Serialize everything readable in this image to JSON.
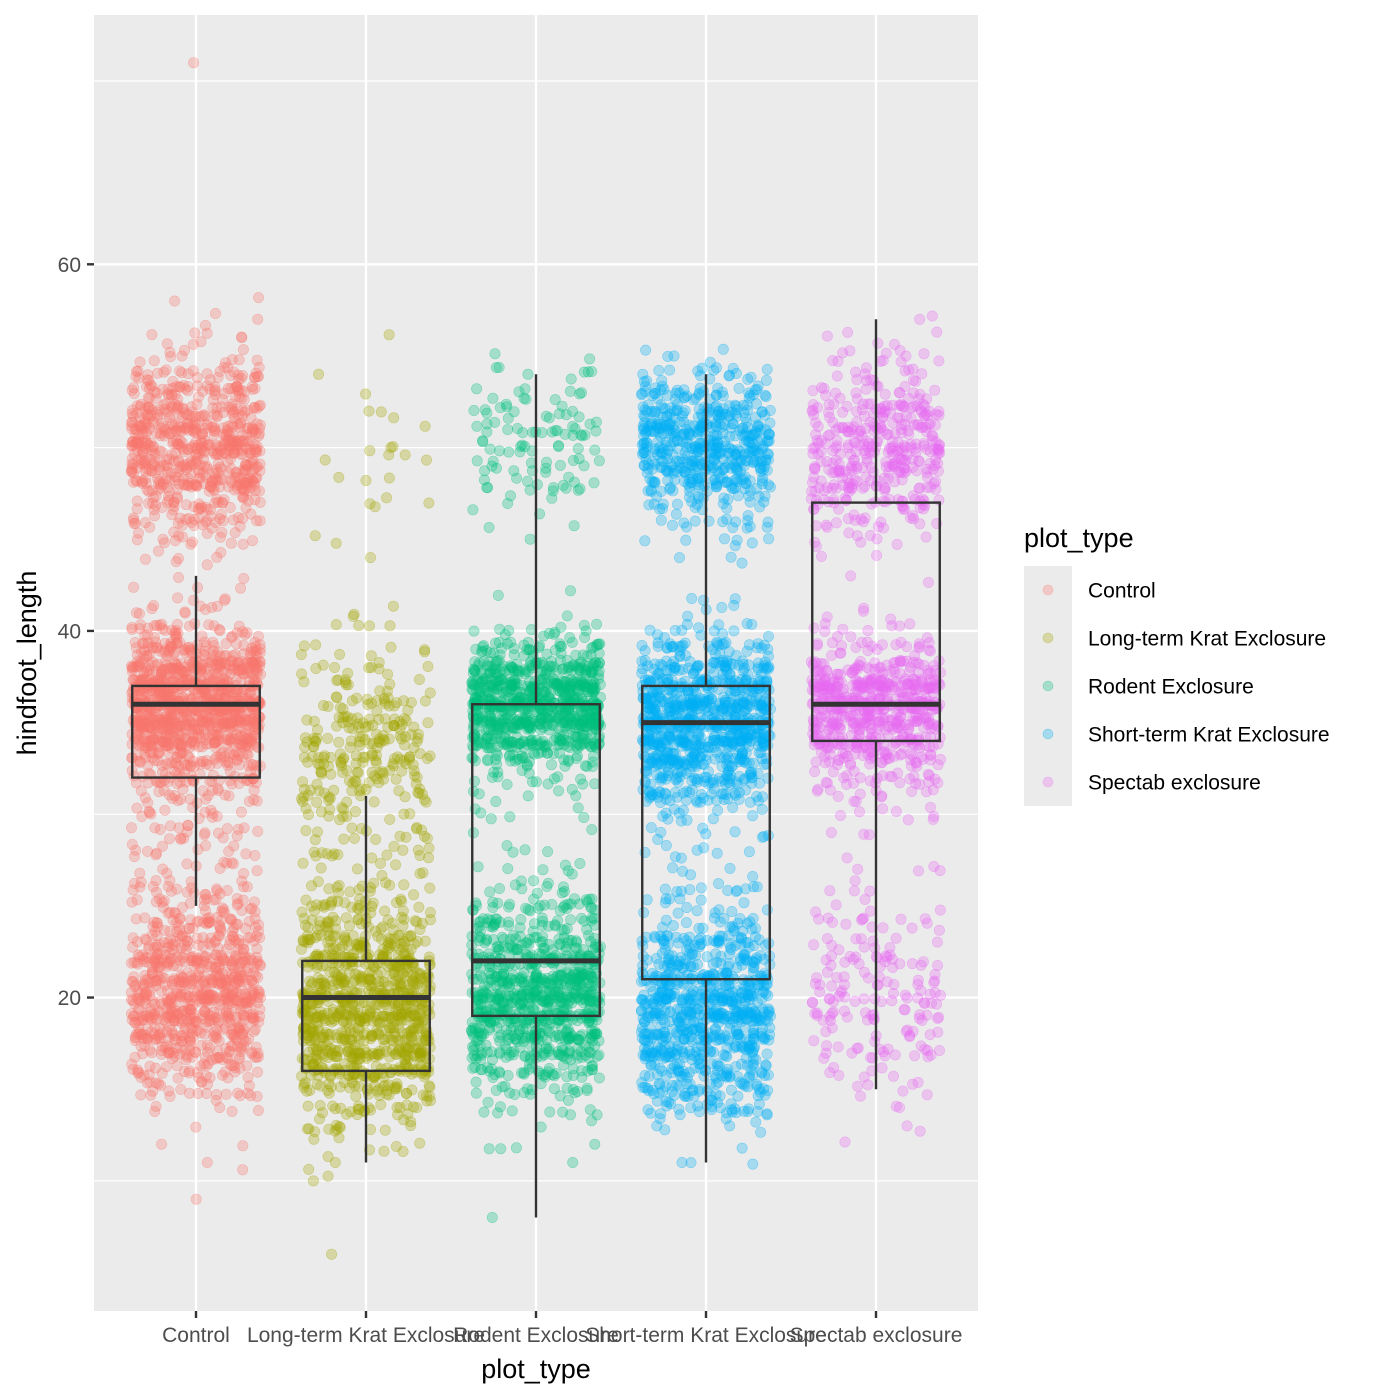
{
  "chart_data": {
    "type": "boxplot-jitter",
    "title": "",
    "xlabel": "plot_type",
    "ylabel": "hindfoot_length",
    "ylim": [
      2.9,
      73.6
    ],
    "yticks": [
      20,
      40,
      60
    ],
    "yminor": [
      10,
      30,
      50,
      70
    ],
    "grid": true,
    "legend": {
      "title": "plot_type",
      "position": "right",
      "entries": [
        "Control",
        "Long-term Krat Exclosure",
        "Rodent Exclosure",
        "Short-term Krat Exclosure",
        "Spectab exclosure"
      ]
    },
    "categories": [
      "Control",
      "Long-term Krat Exclosure",
      "Rodent Exclosure",
      "Short-term Krat Exclosure",
      "Spectab exclosure"
    ],
    "colors": [
      "#F8766D",
      "#A3A500",
      "#00BF7D",
      "#00B0F6",
      "#E76BF3"
    ],
    "point_alpha": 0.3,
    "boxplot": [
      {
        "category": "Control",
        "whisker_low": 25,
        "q1": 32,
        "median": 36,
        "q3": 37,
        "whisker_high": 43
      },
      {
        "category": "Long-term Krat Exclosure",
        "whisker_low": 11,
        "q1": 16,
        "median": 20,
        "q3": 22,
        "whisker_high": 31
      },
      {
        "category": "Rodent Exclosure",
        "whisker_low": 8,
        "q1": 19,
        "median": 22,
        "q3": 36,
        "whisker_high": 54
      },
      {
        "category": "Short-term Krat Exclosure",
        "whisker_low": 11,
        "q1": 21,
        "median": 35,
        "q3": 37,
        "whisker_high": 54
      },
      {
        "category": "Spectab exclosure",
        "whisker_low": 15,
        "q1": 34,
        "median": 36,
        "q3": 47,
        "whisker_high": 57
      }
    ],
    "jitter_bands": [
      {
        "category": "Control",
        "bands": [
          {
            "center": 50,
            "spread": 2.6,
            "n": 700
          },
          {
            "center": 36,
            "spread": 2.0,
            "n": 1100
          },
          {
            "center": 20,
            "spread": 2.6,
            "n": 800
          },
          {
            "center": 29,
            "spread": 3.0,
            "n": 120
          }
        ],
        "outliers": [
          71,
          58,
          57,
          56,
          12,
          11,
          9
        ]
      },
      {
        "category": "Long-term Krat Exclosure",
        "bands": [
          {
            "center": 49,
            "spread": 2.5,
            "n": 22
          },
          {
            "center": 34,
            "spread": 2.6,
            "n": 260
          },
          {
            "center": 19,
            "spread": 3.0,
            "n": 900
          },
          {
            "center": 26,
            "spread": 2.0,
            "n": 60
          }
        ],
        "outliers": [
          54,
          44,
          11,
          10,
          6
        ]
      },
      {
        "category": "Rodent Exclosure",
        "bands": [
          {
            "center": 50,
            "spread": 2.2,
            "n": 110
          },
          {
            "center": 36,
            "spread": 1.8,
            "n": 850
          },
          {
            "center": 20,
            "spread": 2.6,
            "n": 850
          },
          {
            "center": 28,
            "spread": 3.5,
            "n": 30
          }
        ],
        "outliers": [
          54,
          12,
          11,
          8
        ]
      },
      {
        "category": "Short-term Krat Exclosure",
        "bands": [
          {
            "center": 50,
            "spread": 2.0,
            "n": 550
          },
          {
            "center": 35,
            "spread": 2.3,
            "n": 900
          },
          {
            "center": 19,
            "spread": 2.7,
            "n": 800
          },
          {
            "center": 27,
            "spread": 3.0,
            "n": 25
          }
        ],
        "outliers": [
          54,
          44,
          40,
          13,
          11
        ]
      },
      {
        "category": "Spectab exclosure",
        "bands": [
          {
            "center": 50,
            "spread": 2.3,
            "n": 400
          },
          {
            "center": 36,
            "spread": 1.7,
            "n": 600
          },
          {
            "center": 20,
            "spread": 2.7,
            "n": 180
          },
          {
            "center": 32,
            "spread": 1.5,
            "n": 60
          }
        ],
        "outliers": [
          57,
          55,
          43,
          29,
          27,
          24,
          14,
          13
        ]
      }
    ]
  }
}
